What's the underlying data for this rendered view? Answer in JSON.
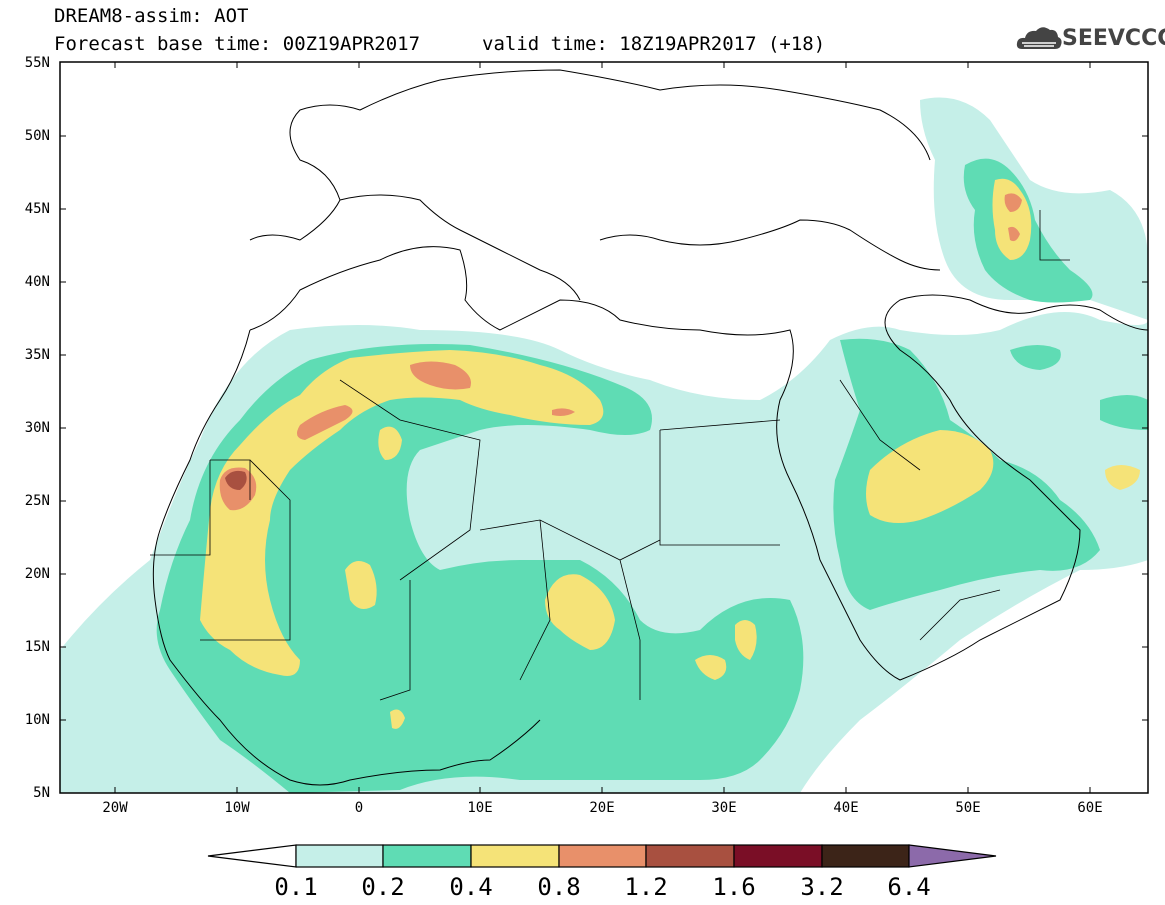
{
  "title_line1": "DREAM8-assim: AOT",
  "title_line2_left": "Forecast base time: 00Z19APR2017",
  "title_line2_right": "valid time: 18Z19APR2017 (+18)",
  "logo_text": "SEEVCCC",
  "lat_labels": [
    "55N",
    "50N",
    "45N",
    "40N",
    "35N",
    "30N",
    "25N",
    "20N",
    "15N",
    "10N",
    "5N"
  ],
  "lon_labels": [
    "20W",
    "10W",
    "0",
    "10E",
    "20E",
    "30E",
    "40E",
    "50E",
    "60E"
  ],
  "colorbar": {
    "labels": [
      "0.1",
      "0.2",
      "0.4",
      "0.8",
      "1.2",
      "1.6",
      "3.2",
      "6.4"
    ],
    "colors": [
      "#ffffff",
      "#c5efe8",
      "#5fdcb4",
      "#f5e378",
      "#e8906a",
      "#a85040",
      "#7a0e26",
      "#3c2418",
      "#8c6aaa"
    ]
  },
  "colors": {
    "c01": "#c5efe8",
    "c02": "#5fdcb4",
    "c04": "#f5e378",
    "c08": "#e8906a",
    "c12": "#a85040"
  }
}
